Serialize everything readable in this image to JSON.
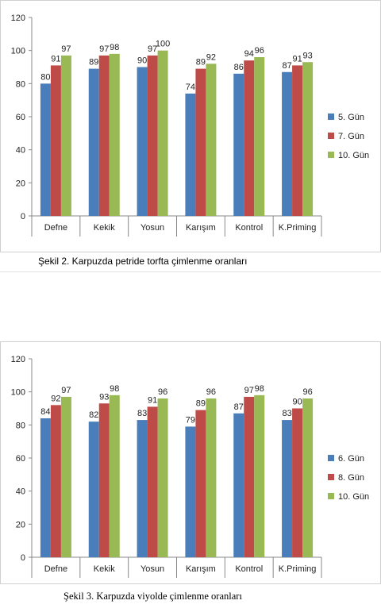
{
  "chart_data": [
    {
      "type": "bar",
      "categories": [
        "Defne",
        "Kekik",
        "Yosun",
        "Karışım",
        "Kontrol",
        "K.Priming"
      ],
      "series": [
        {
          "name": "5. Gün",
          "values": [
            80,
            89,
            90,
            74,
            86,
            87
          ]
        },
        {
          "name": "7. Gün",
          "values": [
            91,
            97,
            97,
            89,
            94,
            91
          ]
        },
        {
          "name": "10. Gün",
          "values": [
            97,
            98,
            100,
            92,
            96,
            93
          ]
        }
      ],
      "ylim": [
        0,
        120
      ],
      "yticks": [
        0,
        20,
        40,
        60,
        80,
        100,
        120
      ],
      "legend": "right",
      "grid": false,
      "colors": [
        "#4a7ebb",
        "#be4b48",
        "#98b954"
      ],
      "caption": "Şekil 2. Karpuzda petride torfta çimlenme oranları"
    },
    {
      "type": "bar",
      "categories": [
        "Defne",
        "Kekik",
        "Yosun",
        "Karışım",
        "Kontrol",
        "K.Priming"
      ],
      "series": [
        {
          "name": "6. Gün",
          "values": [
            84,
            82,
            83,
            79,
            87,
            83
          ]
        },
        {
          "name": "8. Gün",
          "values": [
            92,
            93,
            91,
            89,
            97,
            90
          ]
        },
        {
          "name": "10. Gün",
          "values": [
            97,
            98,
            96,
            96,
            98,
            96
          ]
        }
      ],
      "data_labels": [
        [
          84,
          82,
          83,
          79,
          87,
          83
        ],
        [
          92,
          93,
          91,
          89,
          97,
          90
        ],
        [
          97,
          98,
          96,
          96,
          98,
          96
        ]
      ],
      "ylim": [
        0,
        120
      ],
      "yticks": [
        0,
        20,
        40,
        60,
        80,
        100,
        120
      ],
      "legend": "right",
      "grid": false,
      "colors": [
        "#4a7ebb",
        "#be4b48",
        "#98b954"
      ],
      "caption": "Şekil 3. Karpuzda viyolde çimlenme oranları"
    }
  ]
}
